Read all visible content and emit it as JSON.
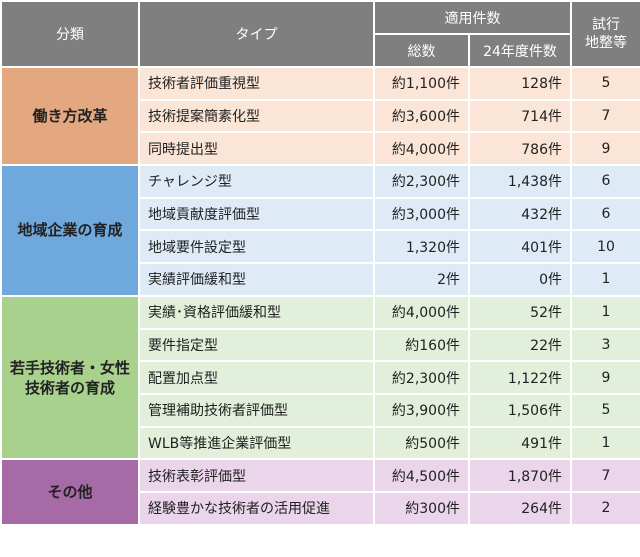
{
  "header": {
    "category": "分類",
    "type": "タイプ",
    "applied": "適用件数",
    "total": "総数",
    "fy24": "24年度件数",
    "trial": "試行\n地整等"
  },
  "groups": [
    {
      "name": "働き方改革",
      "rows": [
        [
          "技術者評価重視型",
          "約1,100件",
          "128件",
          "5"
        ],
        [
          "技術提案簡素化型",
          "約3,600件",
          "714件",
          "7"
        ],
        [
          "同時提出型",
          "約4,000件",
          "786件",
          "9"
        ]
      ]
    },
    {
      "name": "地域企業の育成",
      "rows": [
        [
          "チャレンジ型",
          "約2,300件",
          "1,438件",
          "6"
        ],
        [
          "地域貢献度評価型",
          "約3,000件",
          "432件",
          "6"
        ],
        [
          "地域要件設定型",
          "1,320件",
          "401件",
          "10"
        ],
        [
          "実績評価緩和型",
          "2件",
          "0件",
          "1"
        ]
      ]
    },
    {
      "name": "若手技術者・女性\n技術者の育成",
      "rows": [
        [
          "実績･資格評価緩和型",
          "約4,000件",
          "52件",
          "1"
        ],
        [
          "要件指定型",
          "約160件",
          "22件",
          "3"
        ],
        [
          "配置加点型",
          "約2,300件",
          "1,122件",
          "9"
        ],
        [
          "管理補助技術者評価型",
          "約3,900件",
          "1,506件",
          "5"
        ],
        [
          "WLB等推進企業評価型",
          "約500件",
          "491件",
          "1"
        ]
      ]
    },
    {
      "name": "その他",
      "rows": [
        [
          "技術表彰評価型",
          "約4,500件",
          "1,870件",
          "7"
        ],
        [
          "経験豊かな技術者の活用促進",
          "約300件",
          "264件",
          "2"
        ]
      ]
    }
  ]
}
